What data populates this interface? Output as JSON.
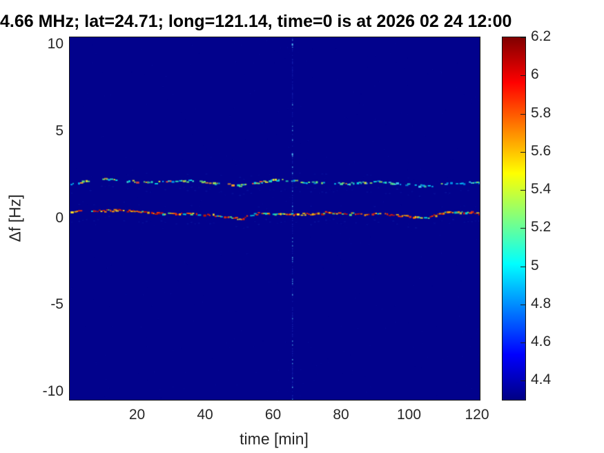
{
  "title": "4.66 MHz;  lat=24.71; long=121.14, time=0 is at 2026 02 24 12:00",
  "axes": {
    "xlabel": "time [min]",
    "ylabel": "Δf [Hz]",
    "x_tick_labels": [
      "20",
      "40",
      "60",
      "80",
      "100",
      "120"
    ],
    "x_tick_values": [
      20,
      40,
      60,
      80,
      100,
      120
    ],
    "y_tick_labels": [
      "10",
      "5",
      "0",
      "-5",
      "-10"
    ],
    "y_tick_values": [
      10,
      5,
      0,
      -5,
      -10
    ],
    "xlim": [
      0,
      120.6
    ],
    "ylim": [
      -10.45,
      10.45
    ],
    "text_color": "#262626"
  },
  "colorbar": {
    "tick_labels": [
      "6.2",
      "6",
      "5.8",
      "5.6",
      "5.4",
      "5.2",
      "5",
      "4.8",
      "4.6",
      "4.4"
    ],
    "tick_values": [
      6.2,
      6.0,
      5.8,
      5.6,
      5.4,
      5.2,
      5.0,
      4.8,
      4.6,
      4.4
    ],
    "clim": [
      4.3,
      6.2
    ],
    "colormap": "jet",
    "gradient_stops": [
      [
        0.0,
        "#000084"
      ],
      [
        0.125,
        "#0000ff"
      ],
      [
        0.375,
        "#00ffff"
      ],
      [
        0.5,
        "#80ff80"
      ],
      [
        0.625,
        "#ffff00"
      ],
      [
        0.875,
        "#ff0000"
      ],
      [
        1.0,
        "#800000"
      ]
    ]
  },
  "chart_data": {
    "type": "heatmap",
    "title": "4.66 MHz;  lat=24.71; long=121.14, time=0 is at 2026 02 24 12:00",
    "xlabel": "time [min]",
    "ylabel": "Δf [Hz]",
    "xlim": [
      0,
      120.6
    ],
    "ylim": [
      -10.45,
      10.45
    ],
    "clim": [
      4.3,
      6.2
    ],
    "colormap": "jet",
    "legend": "none",
    "grid": false,
    "background": {
      "value": 4.33,
      "color": "#02028c"
    },
    "series": [
      {
        "name": "upper Doppler trace",
        "mean_df_hz": 2.1,
        "intensity_range": [
          4.8,
          5.5
        ],
        "t_min": [
          0,
          5,
          10,
          15,
          20,
          25,
          30,
          35,
          40,
          45,
          50,
          55,
          60,
          65,
          70,
          75,
          80,
          85,
          90,
          95,
          100,
          105,
          110,
          115,
          120.6
        ],
        "df_hz": [
          2.05,
          2.2,
          2.3,
          2.2,
          2.18,
          2.1,
          2.18,
          2.2,
          2.1,
          2.0,
          1.92,
          2.1,
          2.28,
          2.2,
          2.12,
          2.1,
          2.05,
          2.08,
          2.15,
          2.08,
          1.98,
          1.9,
          2.02,
          2.1,
          2.12
        ],
        "palette": [
          "#00b4ff",
          "#00e0e8",
          "#2ae8b8",
          "#40e0d0",
          "#66ee7a",
          "#b4ee44",
          "#e8e430",
          "#ffa020",
          "#f05030"
        ],
        "palette2": [
          "#00a0f0",
          "#00c8f0",
          "#20dcd0",
          "#3cc8f0",
          "#48e0a0",
          "#90e060"
        ],
        "palette2_from_t": 70,
        "gap_prob": 0.34,
        "dash_min": 2,
        "dash_max": 5
      },
      {
        "name": "lower Doppler trace",
        "mean_df_hz": 0.3,
        "intensity_range": [
          5.3,
          6.1
        ],
        "t_min": [
          0,
          5,
          10,
          15,
          20,
          25,
          30,
          35,
          40,
          45,
          50,
          55,
          60,
          65,
          70,
          75,
          80,
          85,
          90,
          95,
          100,
          105,
          110,
          115,
          120.6
        ],
        "df_hz": [
          0.45,
          0.5,
          0.48,
          0.5,
          0.42,
          0.35,
          0.32,
          0.3,
          0.28,
          0.15,
          0.02,
          0.32,
          0.3,
          0.28,
          0.3,
          0.38,
          0.3,
          0.3,
          0.32,
          0.25,
          0.15,
          0.1,
          0.38,
          0.42,
          0.35
        ],
        "palette": [
          "#ff9000",
          "#ff6000",
          "#ff3800",
          "#f02000",
          "#d81400",
          "#ffc000",
          "#ffe020",
          "#c01800",
          "#00d8e0",
          "#58e878"
        ],
        "gap_prob": 0.15,
        "dash_min": 2,
        "dash_max": 5
      }
    ],
    "vertical_line": {
      "t_min": 65.4,
      "description": "faint dotted vertical interference line spanning full frequency range",
      "colors": [
        "rgba(60,100,245,0.55)",
        "rgba(90,210,255,0.9)"
      ]
    },
    "noise": {
      "speckle_color": "#2038c8",
      "density": 0.0015
    }
  }
}
